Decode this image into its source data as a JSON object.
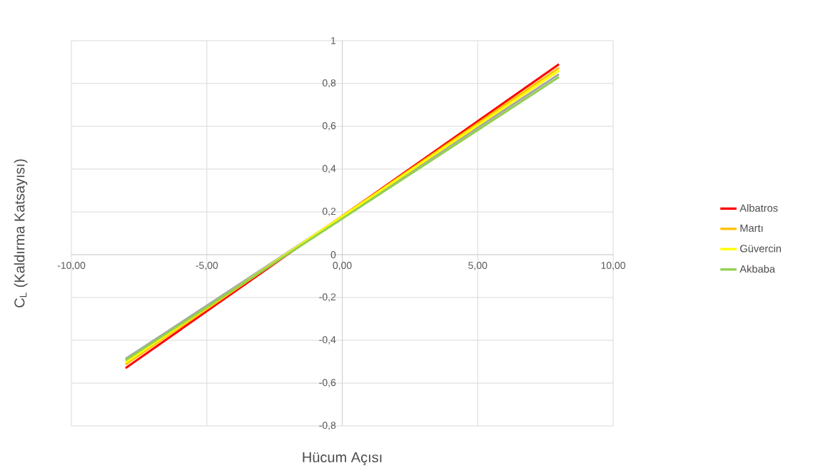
{
  "chart_data": {
    "type": "line",
    "xlabel": "Hücum Açısı",
    "ylabel": "C$_{L}$ (Kaldırma Katsayısı)",
    "xlim": [
      -10,
      10
    ],
    "ylim": [
      -0.8,
      1
    ],
    "xticks": [
      {
        "value": -10,
        "label": "-10,00"
      },
      {
        "value": -5,
        "label": "-5,00"
      },
      {
        "value": 0,
        "label": "0,00"
      },
      {
        "value": 5,
        "label": "5,00"
      },
      {
        "value": 10,
        "label": "10,00"
      }
    ],
    "yticks": [
      {
        "value": -0.8,
        "label": "-0,8"
      },
      {
        "value": -0.6,
        "label": "-0,6"
      },
      {
        "value": -0.4,
        "label": "-0,4"
      },
      {
        "value": -0.2,
        "label": "-0,2"
      },
      0,
      {
        "value": 0.2,
        "label": "0,2"
      },
      {
        "value": 0.4,
        "label": "0,4"
      },
      {
        "value": 0.6,
        "label": "0,6"
      },
      {
        "value": 0.8,
        "label": "0,8"
      },
      1
    ],
    "x": [
      -8,
      8
    ],
    "grid": true,
    "legend": "right",
    "marker": "none",
    "line_style": "solid",
    "series": [
      {
        "name": "Albatros",
        "color": "#ff0000",
        "values": [
          -0.53,
          0.89
        ]
      },
      {
        "name": "Martı",
        "color": "#ffc000",
        "values": [
          -0.513,
          0.873
        ]
      },
      {
        "color": "#a5a5a5",
        "values": [
          -0.487,
          0.843
        ]
      },
      {
        "name": "Güvercin",
        "color": "#ffff00",
        "values": [
          -0.503,
          0.86
        ]
      },
      {
        "name": "Akbaba",
        "color": "#92d050",
        "values": [
          -0.493,
          0.83
        ]
      }
    ]
  }
}
